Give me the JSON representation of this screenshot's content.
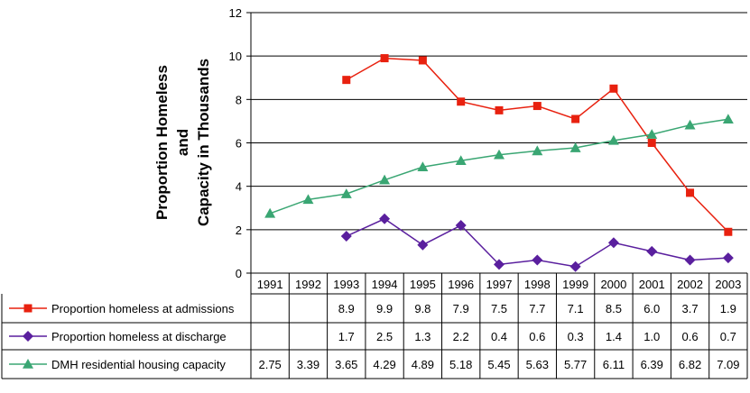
{
  "chart_data": {
    "type": "line",
    "ylabel_lines": [
      "Proportion Homeless",
      "and",
      "Capacity in Thousands"
    ],
    "ylim": [
      0,
      12
    ],
    "yticks": [
      0,
      2,
      4,
      6,
      8,
      10,
      12
    ],
    "grid": true,
    "legend": "data table",
    "categories": [
      "1991",
      "1992",
      "1993",
      "1994",
      "1995",
      "1996",
      "1997",
      "1998",
      "1999",
      "2000",
      "2001",
      "2002",
      "2003"
    ],
    "series": [
      {
        "name": "Proportion homeless at admissions",
        "color": "#e8210f",
        "marker": "square",
        "values": [
          null,
          null,
          8.9,
          9.9,
          9.8,
          7.9,
          7.5,
          7.7,
          7.1,
          8.5,
          6.0,
          3.7,
          1.9
        ],
        "labels": [
          "",
          "",
          "8.9",
          "9.9",
          "9.8",
          "7.9",
          "7.5",
          "7.7",
          "7.1",
          "8.5",
          "6.0",
          "3.7",
          "1.9"
        ]
      },
      {
        "name": "Proportion homeless at discharge",
        "color": "#5a1f9e",
        "marker": "diamond",
        "values": [
          null,
          null,
          1.7,
          2.5,
          1.3,
          2.2,
          0.4,
          0.6,
          0.3,
          1.4,
          1.0,
          0.6,
          0.7
        ],
        "labels": [
          "",
          "",
          "1.7",
          "2.5",
          "1.3",
          "2.2",
          "0.4",
          "0.6",
          "0.3",
          "1.4",
          "1.0",
          "0.6",
          "0.7"
        ]
      },
      {
        "name": "DMH residential housing capacity",
        "color": "#3aa673",
        "marker": "triangle",
        "values": [
          2.75,
          3.39,
          3.65,
          4.29,
          4.89,
          5.18,
          5.45,
          5.63,
          5.77,
          6.11,
          6.39,
          6.82,
          7.09
        ],
        "labels": [
          "2.75",
          "3.39",
          "3.65",
          "4.29",
          "4.89",
          "5.18",
          "5.45",
          "5.63",
          "5.77",
          "6.11",
          "6.39",
          "6.82",
          "7.09"
        ]
      }
    ]
  }
}
